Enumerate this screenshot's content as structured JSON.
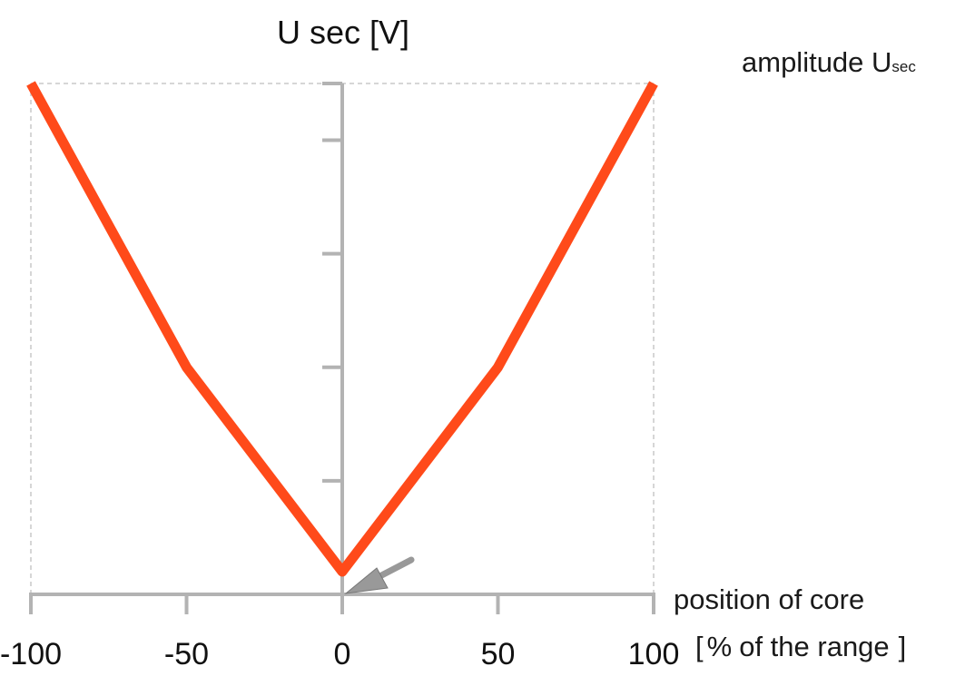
{
  "chart_data": {
    "type": "line",
    "ylabel": "U sec [V]",
    "xlabel_line1": "position of core",
    "xlabel_line2_bracket_open": "[",
    "xlabel_line2_percent": "%",
    "xlabel_line2_text": "of the range",
    "xlabel_line2_bracket_close": "]",
    "annotation_main": "amplitude U",
    "annotation_sub": "sec",
    "xlim": [
      -100,
      100
    ],
    "ylim": [
      0,
      4.5
    ],
    "x_ticks": [
      -100,
      -50,
      0,
      50,
      100
    ],
    "x_tick_labels": [
      "-100",
      "-50",
      "0",
      "50",
      "100"
    ],
    "y_ticks": [
      1,
      2,
      3,
      4
    ],
    "grid": false,
    "series": [
      {
        "x": [
          -100,
          -50,
          0,
          50,
          100
        ],
        "y": [
          4.5,
          2.0,
          0.2,
          2.0,
          4.5
        ],
        "color": "#ff4a1a"
      }
    ],
    "axis_color": "#b3b3b3",
    "guide_color": "#c8c8c8",
    "arrow_color": "#999999"
  }
}
